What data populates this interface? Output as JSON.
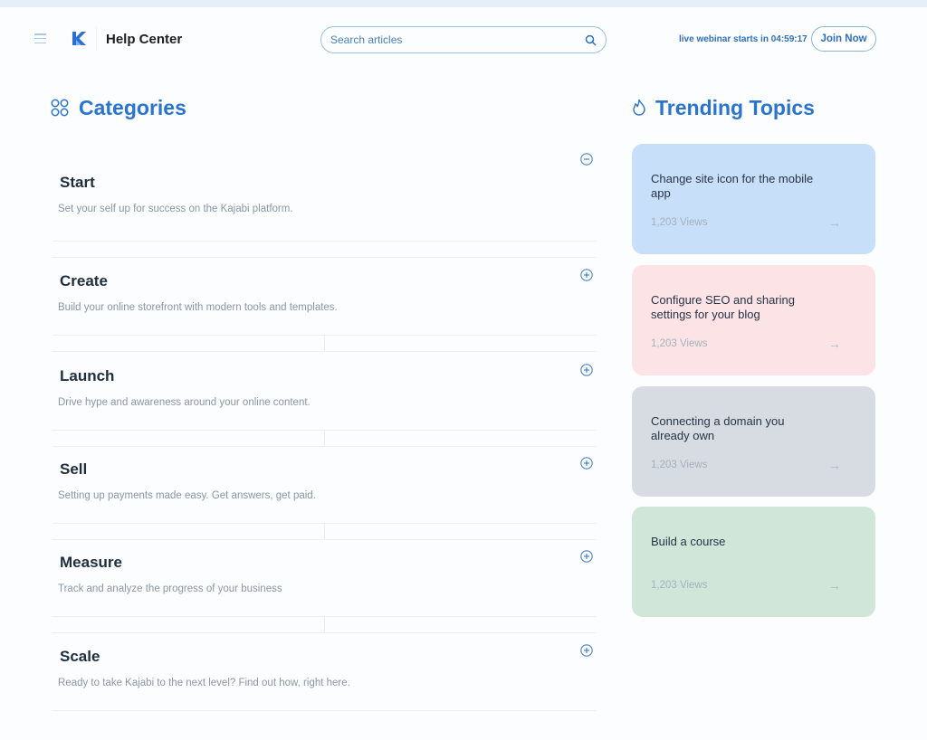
{
  "header": {
    "brand": "Help Center",
    "search_placeholder": "Search articles",
    "webinar": "live webinar starts in 04:59:17",
    "join_label": "Join Now"
  },
  "categories": {
    "title": "Categories",
    "items": [
      {
        "title": "Start",
        "desc": "Set your self up for success on the Kajabi platform.",
        "expanded": true
      },
      {
        "title": "Create",
        "desc": "Build your online storefront with modern tools and templates.",
        "expanded": false
      },
      {
        "title": "Launch",
        "desc": "Drive hype and awareness around your online content.",
        "expanded": false
      },
      {
        "title": "Sell",
        "desc": "Setting up payments made easy. Get answers, get paid.",
        "expanded": false
      },
      {
        "title": "Measure",
        "desc": "Track and analyze the progress of your business",
        "expanded": false
      },
      {
        "title": "Scale",
        "desc": "Ready to take Kajabi to the next level? Find out how, right here.",
        "expanded": false
      }
    ]
  },
  "trending": {
    "title": "Trending Topics",
    "cards": [
      {
        "title": "Change site icon for the mobile app",
        "views": "1,203 Views",
        "color": "#c7dff8"
      },
      {
        "title": "Configure SEO and sharing settings for your blog",
        "views": "1,203 Views",
        "color": "#fbe3e6"
      },
      {
        "title": "Connecting a domain you already own",
        "views": "1,203 Views",
        "color": "#d6dce2"
      },
      {
        "title": "Build a course",
        "views": "1,203 Views",
        "color": "#cfe6d9"
      }
    ]
  },
  "colors": {
    "accent": "#2a74d0"
  }
}
